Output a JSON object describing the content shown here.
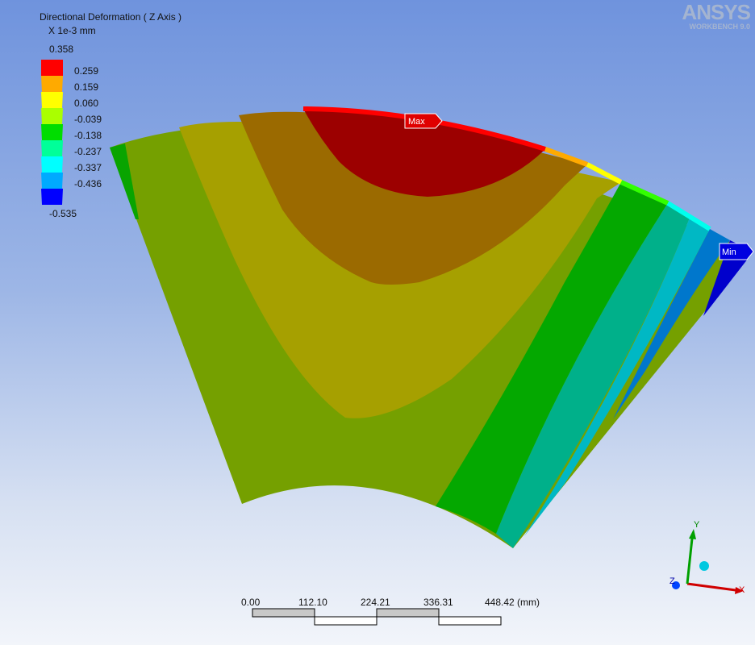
{
  "legend": {
    "title": "Directional Deformation ( Z Axis )",
    "units": "X 1e-3 mm",
    "max_value": "0.358",
    "min_value": "-0.535",
    "bands": [
      {
        "color": "#ff0000"
      },
      {
        "color": "#ffaa00"
      },
      {
        "color": "#ffff00"
      },
      {
        "color": "#aaff00"
      },
      {
        "color": "#00dd00"
      },
      {
        "color": "#00ff99"
      },
      {
        "color": "#00ffff"
      },
      {
        "color": "#00aaff"
      },
      {
        "color": "#0000ff"
      }
    ],
    "labels": [
      "0.259",
      "0.159",
      "0.060",
      "-0.039",
      "-0.138",
      "-0.237",
      "-0.337",
      "-0.436"
    ]
  },
  "brand": {
    "name": "ANSYS",
    "subtitle": "WORKBENCH 9.0"
  },
  "probes": {
    "max_label": "Max",
    "min_label": "Min"
  },
  "scale_bar": {
    "ticks": [
      "0.00",
      "112.10",
      "224.21",
      "336.31",
      "448.42 (mm)"
    ]
  },
  "triad": {
    "x_label": "X",
    "y_label": "Y",
    "z_label": "Z"
  },
  "colors": {
    "red_zone": "#9c0000",
    "orange_zone": "#9b6a00",
    "yellow_zone": "#a6a000",
    "green_zone": "#75a000",
    "mid_green": "#04a800",
    "teal_zone": "#00b08a",
    "cyan_zone": "#00b8c4",
    "blue_zone": "#0077cc",
    "deep_blue": "#0000cc"
  }
}
